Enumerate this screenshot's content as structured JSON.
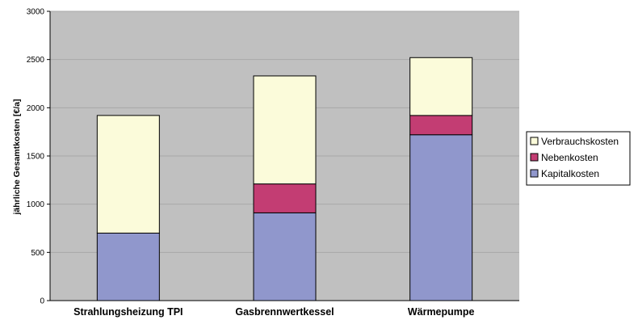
{
  "chart_data": {
    "type": "bar",
    "stacked": true,
    "categories": [
      "Strahlungsheizung TPI",
      "Gasbrennwertkessel",
      "Wärmepumpe"
    ],
    "series": [
      {
        "name": "Kapitalkosten",
        "values": [
          700,
          910,
          1720
        ],
        "color": "#9097CC"
      },
      {
        "name": "Nebenkosten",
        "values": [
          0,
          300,
          200
        ],
        "color": "#C33D73"
      },
      {
        "name": "Verbrauchskosten",
        "values": [
          1220,
          1120,
          600
        ],
        "color": "#FBFBDA"
      }
    ],
    "title": "",
    "xlabel": "",
    "ylabel": "jährliche Gesamtkosten [€/a]",
    "ylim": [
      0,
      3000
    ],
    "yticks": [
      0,
      500,
      1000,
      1500,
      2000,
      2500,
      3000
    ],
    "grid": true,
    "legend_position": "right",
    "legend_order": [
      "Verbrauchskosten",
      "Nebenkosten",
      "Kapitalkosten"
    ],
    "plot_background": "#C0C0C0",
    "gridline_color": "#A8A8A8"
  }
}
